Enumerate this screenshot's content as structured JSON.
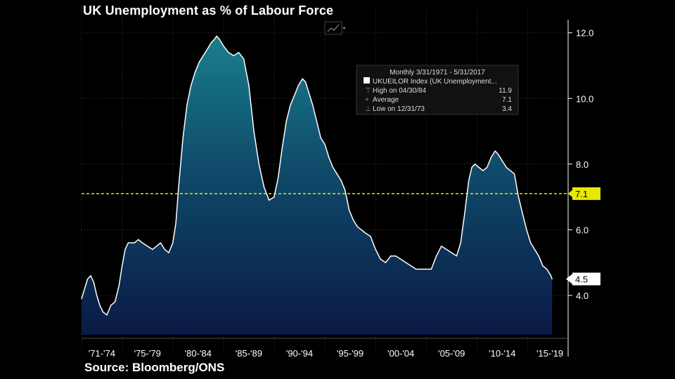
{
  "chart_data": {
    "type": "area",
    "title": "UK Unemployment as % of Labour Force",
    "source": "Source: Bloomberg/ONS",
    "ylim": [
      2.8,
      12.4
    ],
    "xlim": [
      1971.0,
      2019.0
    ],
    "y_ticks": [
      "4.0",
      "6.0",
      "8.0",
      "10.0",
      "12.0"
    ],
    "x_tick_labels": [
      "'71-'74",
      "'75-'79",
      "'80-'84",
      "'85-'89",
      "'90-'94",
      "'95-'99",
      "'00-'04",
      "'05-'09",
      "'10-'14",
      "'15-'19"
    ],
    "x_tick_positions": [
      1971,
      1975,
      1980,
      1985,
      1990,
      1995,
      2000,
      2005,
      2010,
      2015
    ],
    "grid": true,
    "average_line": {
      "value": 7.1,
      "label": "7.1",
      "color": "#e8e800"
    },
    "last_value": {
      "value": 4.5,
      "label": "4.5"
    },
    "series": [
      {
        "name": "UKUEILOR Index (UK Unemployment...",
        "color": "#ffffff",
        "x": [
          1971.0,
          1971.3,
          1971.6,
          1971.9,
          1972.2,
          1972.5,
          1972.8,
          1973.1,
          1973.5,
          1973.9,
          1974.3,
          1974.7,
          1975.0,
          1975.3,
          1975.6,
          1975.9,
          1976.2,
          1976.6,
          1977.0,
          1977.5,
          1978.0,
          1978.4,
          1978.8,
          1979.2,
          1979.6,
          1980.0,
          1980.3,
          1980.6,
          1981.0,
          1981.4,
          1981.8,
          1982.2,
          1982.6,
          1983.0,
          1983.4,
          1983.8,
          1984.1,
          1984.33,
          1984.6,
          1985.0,
          1985.5,
          1986.0,
          1986.5,
          1987.0,
          1987.5,
          1988.0,
          1988.5,
          1989.0,
          1989.5,
          1990.0,
          1990.4,
          1990.8,
          1991.2,
          1991.6,
          1992.0,
          1992.4,
          1992.8,
          1993.1,
          1993.4,
          1993.8,
          1994.2,
          1994.6,
          1995.0,
          1995.4,
          1995.8,
          1996.2,
          1996.6,
          1997.0,
          1997.4,
          1997.8,
          1998.2,
          1998.6,
          1999.0,
          1999.5,
          2000.0,
          2000.5,
          2001.0,
          2001.5,
          2002.0,
          2002.5,
          2003.0,
          2003.5,
          2004.0,
          2004.5,
          2005.0,
          2005.5,
          2006.0,
          2006.5,
          2007.0,
          2007.5,
          2008.0,
          2008.4,
          2008.8,
          2009.2,
          2009.5,
          2009.8,
          2010.2,
          2010.6,
          2011.0,
          2011.4,
          2011.8,
          2012.1,
          2012.5,
          2012.9,
          2013.3,
          2013.7,
          2014.1,
          2014.5,
          2014.9,
          2015.3,
          2015.7,
          2016.1,
          2016.5,
          2016.9,
          2017.3,
          2017.42
        ],
        "values": [
          3.9,
          4.2,
          4.5,
          4.6,
          4.4,
          4.0,
          3.7,
          3.5,
          3.4,
          3.7,
          3.8,
          4.3,
          4.9,
          5.4,
          5.6,
          5.6,
          5.6,
          5.7,
          5.6,
          5.5,
          5.4,
          5.5,
          5.6,
          5.4,
          5.3,
          5.6,
          6.2,
          7.4,
          8.8,
          9.8,
          10.4,
          10.8,
          11.1,
          11.3,
          11.5,
          11.7,
          11.8,
          11.9,
          11.8,
          11.6,
          11.4,
          11.3,
          11.4,
          11.2,
          10.4,
          9.0,
          8.0,
          7.3,
          6.9,
          7.0,
          7.6,
          8.5,
          9.3,
          9.8,
          10.1,
          10.4,
          10.6,
          10.5,
          10.2,
          9.8,
          9.3,
          8.8,
          8.6,
          8.2,
          7.9,
          7.7,
          7.5,
          7.2,
          6.6,
          6.3,
          6.1,
          6.0,
          5.9,
          5.8,
          5.4,
          5.1,
          5.0,
          5.2,
          5.2,
          5.1,
          5.0,
          4.9,
          4.8,
          4.8,
          4.8,
          4.8,
          5.2,
          5.5,
          5.4,
          5.3,
          5.2,
          5.6,
          6.5,
          7.5,
          7.9,
          8.0,
          7.9,
          7.8,
          7.9,
          8.2,
          8.4,
          8.3,
          8.1,
          7.9,
          7.8,
          7.7,
          7.0,
          6.5,
          6.0,
          5.6,
          5.4,
          5.2,
          4.9,
          4.8,
          4.6,
          4.5
        ]
      }
    ],
    "legend_box": {
      "header": "Monthly 3/31/1971 - 5/31/2017",
      "series_name": "UKUEILOR Index (UK Unemployment...",
      "rows": [
        {
          "label": "High on 04/30/84",
          "value": "11.9"
        },
        {
          "label": "Average",
          "value": "7.1"
        },
        {
          "label": "Low on 12/31/73",
          "value": "3.4"
        }
      ]
    }
  }
}
